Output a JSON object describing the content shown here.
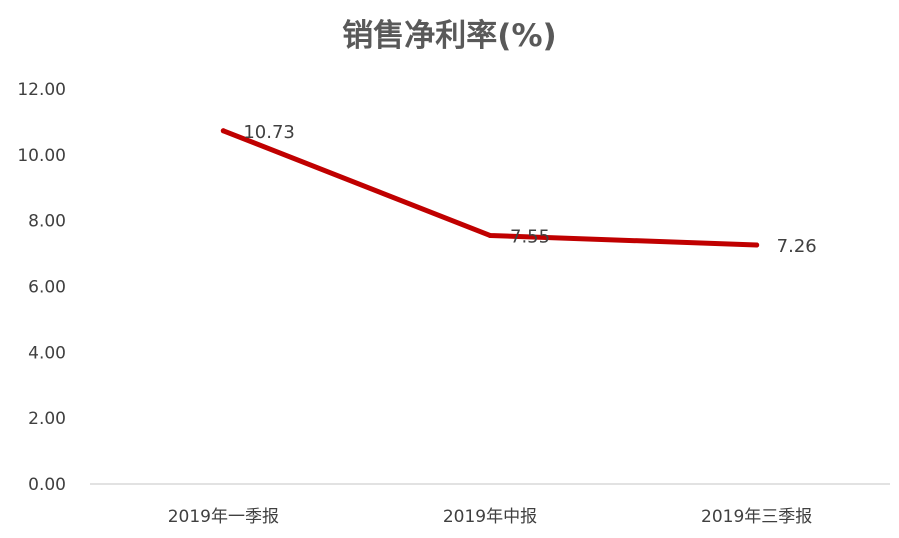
{
  "chart_data": {
    "type": "line",
    "title": "销售净利率(%)",
    "xlabel": "",
    "ylabel": "",
    "categories": [
      "2019年一季报",
      "2019年中报",
      "2019年三季报"
    ],
    "series": [
      {
        "values": [
          10.73,
          7.55,
          7.26
        ],
        "color": "#C00000",
        "data_labels": [
          "10.73",
          "7.55",
          "7.26"
        ]
      }
    ],
    "ylim": [
      0,
      12
    ],
    "yticks": [
      0,
      2,
      4,
      6,
      8,
      10,
      12
    ],
    "ytick_labels": [
      "0.00",
      "2.00",
      "4.00",
      "6.00",
      "8.00",
      "10.00",
      "12.00"
    ],
    "grid": false,
    "legend": "none",
    "axis_color": "#D9D9D9",
    "text_color": "#404040"
  }
}
